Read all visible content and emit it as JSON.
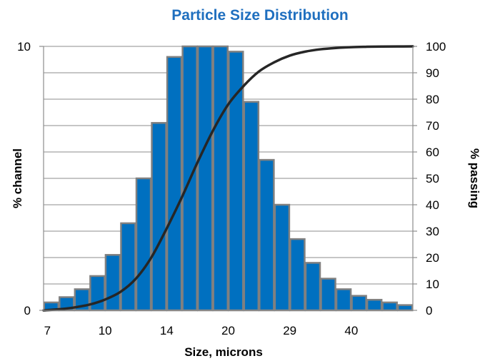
{
  "chart_data": {
    "type": "bar",
    "title": "Particle Size Distribution",
    "xlabel": "Size, microns",
    "ylabel": "% channel",
    "y2label": "% passing",
    "xticks": [
      "7",
      "10",
      "14",
      "20",
      "29",
      "40"
    ],
    "yticks_left": [
      "0",
      "10"
    ],
    "yticks_right": [
      "0",
      "10",
      "20",
      "30",
      "40",
      "50",
      "60",
      "70",
      "80",
      "90",
      "100"
    ],
    "ylim": [
      0,
      10
    ],
    "y2lim": [
      0,
      100
    ],
    "grid": true,
    "legend": "none",
    "bar_series": {
      "values": [
        0.3,
        0.5,
        0.8,
        1.3,
        2.1,
        3.3,
        5.0,
        7.1,
        9.6,
        10.0,
        10.0,
        10.0,
        9.8,
        7.9,
        5.7,
        4.0,
        2.7,
        1.8,
        1.2,
        0.8,
        0.55,
        0.4,
        0.3,
        0.2
      ]
    },
    "line_series": {
      "x": [
        0,
        1,
        2,
        3,
        4,
        5,
        6,
        7,
        8,
        9,
        10,
        11,
        12,
        13,
        14,
        15,
        16,
        17,
        18,
        19,
        20,
        21,
        22,
        23,
        24
      ],
      "values": [
        0,
        0.4,
        1.1,
        2.2,
        4.1,
        7.0,
        12.0,
        20.0,
        31.0,
        43.0,
        56.0,
        68.0,
        78.0,
        85.0,
        90.5,
        94.0,
        96.5,
        98.0,
        98.9,
        99.4,
        99.7,
        99.85,
        99.93,
        99.97,
        100.0
      ]
    },
    "colors": {
      "bar_fill": "#0070c0",
      "bar_stroke": "#808080",
      "line": "#262626",
      "grid": "#8c8c8c",
      "title": "#1f6fbf"
    }
  }
}
